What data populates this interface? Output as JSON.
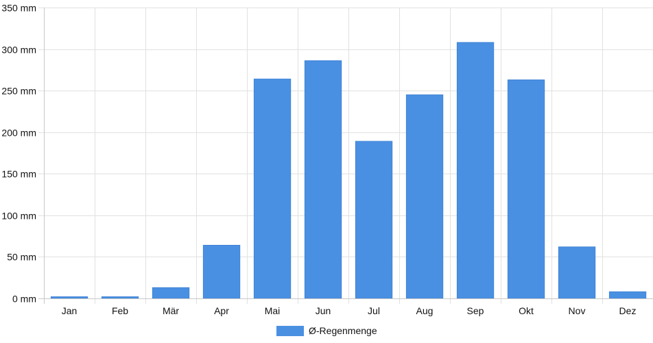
{
  "chart_data": {
    "type": "bar",
    "categories": [
      "Jan",
      "Feb",
      "Mär",
      "Apr",
      "Mai",
      "Jun",
      "Jul",
      "Aug",
      "Sep",
      "Okt",
      "Nov",
      "Dez"
    ],
    "series": [
      {
        "name": "Ø-Regenmenge",
        "color": "#4a90e2",
        "values": [
          2,
          2,
          13,
          64,
          264,
          286,
          189,
          245,
          308,
          263,
          62,
          8
        ]
      }
    ],
    "ylim": [
      0,
      350
    ],
    "yticks": [
      0,
      50,
      100,
      150,
      200,
      250,
      300,
      350
    ],
    "unit": "mm",
    "grid": true,
    "legend_position": "bottom"
  }
}
